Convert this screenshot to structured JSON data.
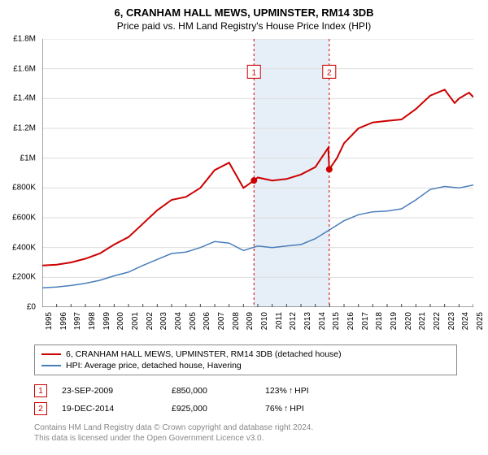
{
  "title": "6, CRANHAM HALL MEWS, UPMINSTER, RM14 3DB",
  "subtitle": "Price paid vs. HM Land Registry's House Price Index (HPI)",
  "chart": {
    "type": "line",
    "background_color": "#ffffff",
    "grid_color": "#dddddd",
    "axis_color": "#444444",
    "shaded_band_color": "#e6eef7",
    "sale_line_color": "#cc0000",
    "sale_line_dash": "3,3",
    "marker_color": "#cc0000",
    "marker_radius": 4,
    "ylim": [
      0,
      1800000
    ],
    "ytick_step": 200000,
    "ytick_labels": [
      "£0",
      "£200K",
      "£400K",
      "£600K",
      "£800K",
      "£1M",
      "£1.2M",
      "£1.4M",
      "£1.6M",
      "£1.8M"
    ],
    "xlim": [
      1995,
      2025
    ],
    "xtick_step": 1,
    "xtick_labels": [
      "1995",
      "1996",
      "1997",
      "1998",
      "1999",
      "2000",
      "2001",
      "2002",
      "2003",
      "2004",
      "2005",
      "2006",
      "2007",
      "2008",
      "2009",
      "2010",
      "2011",
      "2012",
      "2013",
      "2014",
      "2015",
      "2016",
      "2017",
      "2018",
      "2019",
      "2020",
      "2021",
      "2022",
      "2023",
      "2024",
      "2025"
    ],
    "shaded_band": {
      "x_start": 2009.73,
      "x_end": 2014.97
    },
    "series": [
      {
        "name": "property",
        "label": "6, CRANHAM HALL MEWS, UPMINSTER, RM14 3DB (detached house)",
        "color": "#cc0000",
        "line_width": 2,
        "data": [
          [
            1995,
            280000
          ],
          [
            1996,
            285000
          ],
          [
            1997,
            300000
          ],
          [
            1998,
            325000
          ],
          [
            1999,
            360000
          ],
          [
            2000,
            420000
          ],
          [
            2001,
            470000
          ],
          [
            2002,
            560000
          ],
          [
            2003,
            650000
          ],
          [
            2004,
            720000
          ],
          [
            2005,
            740000
          ],
          [
            2006,
            800000
          ],
          [
            2007,
            920000
          ],
          [
            2008,
            970000
          ],
          [
            2009,
            800000
          ],
          [
            2009.73,
            850000
          ],
          [
            2010,
            870000
          ],
          [
            2011,
            850000
          ],
          [
            2012,
            860000
          ],
          [
            2013,
            890000
          ],
          [
            2014,
            940000
          ],
          [
            2014.9,
            1070000
          ],
          [
            2014.97,
            925000
          ],
          [
            2015.5,
            1000000
          ],
          [
            2016,
            1100000
          ],
          [
            2017,
            1200000
          ],
          [
            2018,
            1240000
          ],
          [
            2019,
            1250000
          ],
          [
            2020,
            1260000
          ],
          [
            2021,
            1330000
          ],
          [
            2022,
            1420000
          ],
          [
            2023,
            1460000
          ],
          [
            2023.7,
            1370000
          ],
          [
            2024,
            1400000
          ],
          [
            2024.7,
            1440000
          ],
          [
            2025,
            1410000
          ]
        ]
      },
      {
        "name": "hpi",
        "label": "HPI: Average price, detached house, Havering",
        "color": "#4a7ebb",
        "line_width": 1.5,
        "data": [
          [
            1995,
            130000
          ],
          [
            1996,
            135000
          ],
          [
            1997,
            145000
          ],
          [
            1998,
            160000
          ],
          [
            1999,
            180000
          ],
          [
            2000,
            210000
          ],
          [
            2001,
            235000
          ],
          [
            2002,
            280000
          ],
          [
            2003,
            320000
          ],
          [
            2004,
            360000
          ],
          [
            2005,
            370000
          ],
          [
            2006,
            400000
          ],
          [
            2007,
            440000
          ],
          [
            2008,
            430000
          ],
          [
            2009,
            380000
          ],
          [
            2010,
            410000
          ],
          [
            2011,
            400000
          ],
          [
            2012,
            410000
          ],
          [
            2013,
            420000
          ],
          [
            2014,
            460000
          ],
          [
            2015,
            520000
          ],
          [
            2016,
            580000
          ],
          [
            2017,
            620000
          ],
          [
            2018,
            640000
          ],
          [
            2019,
            645000
          ],
          [
            2020,
            660000
          ],
          [
            2021,
            720000
          ],
          [
            2022,
            790000
          ],
          [
            2023,
            810000
          ],
          [
            2024,
            800000
          ],
          [
            2025,
            820000
          ]
        ]
      }
    ],
    "sale_markers": [
      {
        "idx": "1",
        "x": 2009.73,
        "y": 850000,
        "badge_y": 1580000
      },
      {
        "idx": "2",
        "x": 2014.97,
        "y": 925000,
        "badge_y": 1580000
      }
    ]
  },
  "legend": {
    "items": [
      {
        "color": "#cc0000",
        "label": "6, CRANHAM HALL MEWS, UPMINSTER, RM14 3DB (detached house)"
      },
      {
        "color": "#4a7ebb",
        "label": "HPI: Average price, detached house, Havering"
      }
    ]
  },
  "sales": [
    {
      "idx": "1",
      "date": "23-SEP-2009",
      "price": "£850,000",
      "hpi_pct": "123%",
      "arrow": "↑",
      "hpi_label": "HPI",
      "badge_color": "#cc0000"
    },
    {
      "idx": "2",
      "date": "19-DEC-2014",
      "price": "£925,000",
      "hpi_pct": "76%",
      "arrow": "↑",
      "hpi_label": "HPI",
      "badge_color": "#cc0000"
    }
  ],
  "footer": {
    "line1": "Contains HM Land Registry data © Crown copyright and database right 2024.",
    "line2": "This data is licensed under the Open Government Licence v3.0."
  }
}
